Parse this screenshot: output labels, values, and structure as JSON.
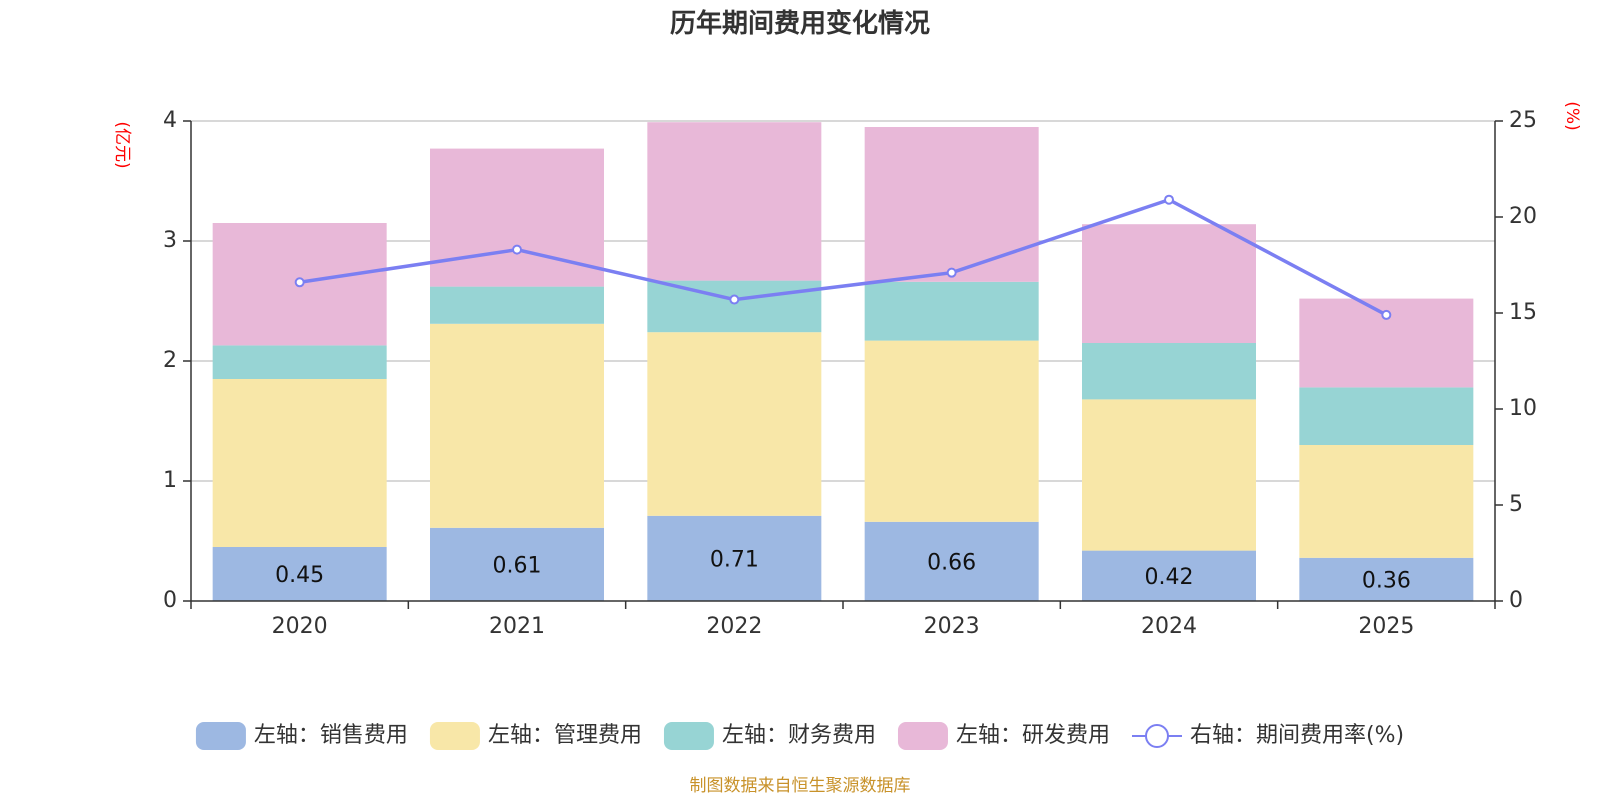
{
  "chart_data": {
    "type": "bar",
    "stacked": true,
    "title": "历年期间费用变化情况",
    "categories": [
      "2020",
      "2021",
      "2022",
      "2023",
      "2024",
      "2025"
    ],
    "left_axis": {
      "unit": "(亿元)",
      "ylim": [
        0,
        4
      ],
      "ticks": [
        0,
        1,
        2,
        3,
        4
      ]
    },
    "right_axis": {
      "unit": "(%)",
      "ylim": [
        0,
        25
      ],
      "ticks": [
        0,
        5,
        10,
        15,
        20,
        25
      ]
    },
    "series": [
      {
        "name": "左轴：销售费用",
        "axis": "left",
        "type": "bar",
        "color": "#9db8e2",
        "values": [
          0.45,
          0.61,
          0.71,
          0.66,
          0.42,
          0.36
        ],
        "show_labels": true
      },
      {
        "name": "左轴：管理费用",
        "axis": "left",
        "type": "bar",
        "color": "#f8e7a8",
        "values": [
          1.4,
          1.7,
          1.53,
          1.51,
          1.26,
          0.94
        ],
        "show_labels": false
      },
      {
        "name": "左轴：财务费用",
        "axis": "left",
        "type": "bar",
        "color": "#97d4d4",
        "values": [
          0.28,
          0.31,
          0.43,
          0.49,
          0.47,
          0.48
        ],
        "show_labels": false
      },
      {
        "name": "左轴：研发费用",
        "axis": "left",
        "type": "bar",
        "color": "#e8b8d8",
        "values": [
          1.02,
          1.15,
          1.32,
          1.29,
          0.99,
          0.74
        ],
        "show_labels": false
      },
      {
        "name": "右轴：期间费用率(%)",
        "axis": "right",
        "type": "line",
        "color": "#7b7ff2",
        "values": [
          16.6,
          18.3,
          15.7,
          17.1,
          20.9,
          14.9
        ],
        "show_labels": false
      }
    ],
    "grid": true,
    "legend_position": "bottom",
    "source": "制图数据来自恒生聚源数据库"
  }
}
